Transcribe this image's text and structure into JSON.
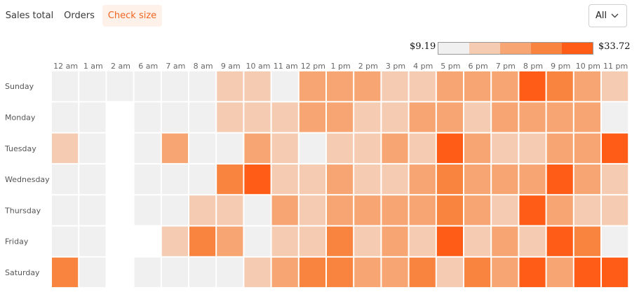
{
  "tabs": [
    {
      "label": "Sales total",
      "active": false
    },
    {
      "label": "Orders",
      "active": false
    },
    {
      "label": "Check size",
      "active": true
    }
  ],
  "filter": {
    "value": "All",
    "icon": "chevron-down-icon"
  },
  "colors": {
    "empty": "#f0f0f0",
    "scale": [
      "#f0f0f0",
      "#f5cbb2",
      "#f7a673",
      "#f8843f",
      "#ff5c17"
    ],
    "accent": "#f26522",
    "active_tab_bg": "#fdf1e9"
  },
  "legend": {
    "min_label": "$9.19",
    "max_label": "$33.72"
  },
  "chart_data": {
    "type": "heatmap",
    "title": "",
    "value_unit": "check size ($)",
    "legend_range": [
      9.19,
      33.72
    ],
    "columns": [
      "12 am",
      "1 am",
      "2 am",
      "6 am",
      "7 am",
      "8 am",
      "9 am",
      "10 am",
      "11 am",
      "12 pm",
      "1 pm",
      "2 pm",
      "3 pm",
      "4 pm",
      "5 pm",
      "6 pm",
      "7 pm",
      "8 pm",
      "9 pm",
      "10 pm",
      "11 pm"
    ],
    "rows": [
      "Sunday",
      "Monday",
      "Tuesday",
      "Wednesday",
      "Thursday",
      "Friday",
      "Saturday"
    ],
    "level_legend": "levels 0-4 map to the 5-step color scale from $9.19 (0) to $33.72 (4); null = no data",
    "levels": [
      [
        0,
        0,
        0,
        0,
        0,
        0,
        1,
        1,
        0,
        2,
        2,
        2,
        1,
        1,
        2,
        2,
        2,
        4,
        3,
        2,
        1
      ],
      [
        0,
        0,
        null,
        0,
        0,
        0,
        1,
        1,
        1,
        2,
        2,
        1,
        1,
        2,
        2,
        1,
        2,
        2,
        2,
        2,
        0
      ],
      [
        1,
        0,
        null,
        0,
        2,
        0,
        0,
        2,
        1,
        0,
        1,
        1,
        2,
        1,
        4,
        2,
        1,
        1,
        2,
        2,
        4
      ],
      [
        0,
        0,
        null,
        0,
        0,
        0,
        3,
        4,
        1,
        1,
        2,
        1,
        1,
        2,
        3,
        2,
        2,
        2,
        4,
        2,
        1
      ],
      [
        0,
        0,
        null,
        0,
        0,
        1,
        1,
        0,
        2,
        1,
        2,
        2,
        2,
        2,
        3,
        2,
        1,
        4,
        2,
        1,
        1
      ],
      [
        0,
        0,
        null,
        null,
        1,
        3,
        2,
        0,
        1,
        1,
        3,
        1,
        2,
        1,
        4,
        1,
        2,
        1,
        4,
        3,
        0
      ],
      [
        3,
        0,
        null,
        0,
        0,
        0,
        0,
        1,
        2,
        3,
        3,
        2,
        2,
        3,
        1,
        3,
        2,
        4,
        2,
        4,
        4
      ]
    ]
  }
}
